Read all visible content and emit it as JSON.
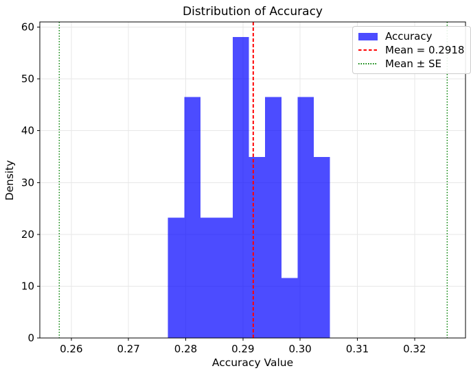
{
  "chart_data": {
    "type": "bar",
    "subtype": "histogram-density",
    "title": "Distribution of Accuracy",
    "xlabel": "Accuracy Value",
    "ylabel": "Density",
    "xlim": [
      0.2545,
      0.3289
    ],
    "ylim": [
      0,
      61
    ],
    "grid": true,
    "grid_color": "#e7e7e7",
    "x_ticks": [
      0.26,
      0.27,
      0.28,
      0.29,
      0.3,
      0.31,
      0.32
    ],
    "x_tick_labels": [
      "0.26",
      "0.27",
      "0.28",
      "0.29",
      "0.30",
      "0.31",
      "0.32"
    ],
    "y_ticks": [
      0,
      10,
      20,
      30,
      40,
      50,
      60
    ],
    "y_tick_labels": [
      "0",
      "10",
      "20",
      "30",
      "40",
      "50",
      "60"
    ],
    "histogram": {
      "series_name": "Accuracy",
      "bin_start": 0.2769,
      "bin_width": 0.00283,
      "densities": [
        23.2,
        46.5,
        23.2,
        23.2,
        58.1,
        34.9,
        46.5,
        11.6,
        46.5,
        34.9
      ],
      "fill_color": "#0000ff",
      "fill_opacity": 0.7
    },
    "mean_line": {
      "value": 0.2918,
      "color": "#ff0000",
      "line_style": "dashed",
      "line_width": 2
    },
    "se_lines": {
      "mean": 0.2918,
      "se": 0.0339,
      "values": [
        0.2579,
        0.3257
      ],
      "color": "#008000",
      "line_style": "dotted",
      "line_width": 1.5
    },
    "legend": {
      "position": "upper right",
      "entries": [
        {
          "label": "Accuracy",
          "key": "patch",
          "color": "#0000ff",
          "opacity": 0.7
        },
        {
          "label": "Mean = 0.2918",
          "key": "dashed-line",
          "color": "#ff0000",
          "opacity": 1
        },
        {
          "label": "Mean ± SE",
          "key": "dotted-line",
          "color": "#008000",
          "opacity": 1
        }
      ]
    }
  }
}
